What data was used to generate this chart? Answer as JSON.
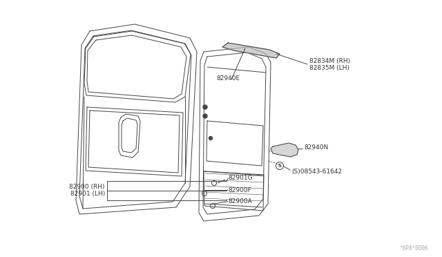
{
  "bg_color": "#ffffff",
  "line_color": "#444444",
  "label_color": "#333333",
  "watermark": "^8P8*0006",
  "labels": {
    "82834M_RH": "82834M (RH)",
    "82835M_LH": "82835M (LH)",
    "82940E": "82940E",
    "82940N": "82940N",
    "08543_61642": "08543-61642",
    "82901G": "82901G",
    "82900F": "82900F",
    "82900A": "82900A",
    "82900_RH": "82900 (RH)",
    "82901_LH": "82901 (LH)"
  },
  "font_size": 6.0
}
